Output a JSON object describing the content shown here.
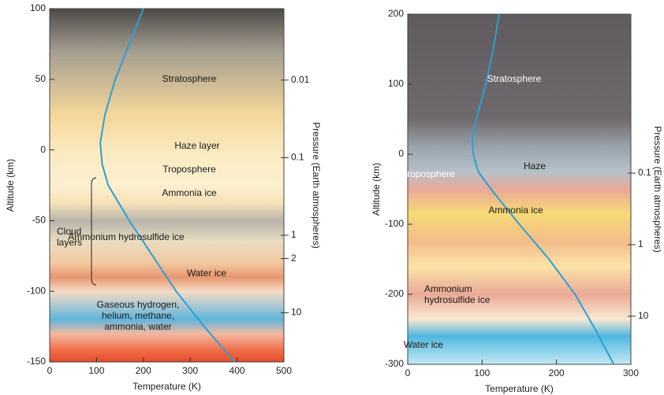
{
  "chart_data": [
    {
      "type": "line",
      "xlabel": "Temperature (K)",
      "ylabel": "Altitude (km)",
      "y2label": "Pressure (Earth atmospheres)",
      "xlim": [
        0,
        500
      ],
      "xticks": [
        0,
        100,
        200,
        300,
        400,
        500
      ],
      "ylim": [
        -150,
        100
      ],
      "yticks": [
        -150,
        -100,
        -50,
        0,
        50,
        100
      ],
      "y2scale": "log",
      "y2lim": [
        43,
        0.0012
      ],
      "y2ticks": [
        0.01,
        0.1,
        1,
        2,
        10
      ],
      "series": [
        {
          "color": "#2a9fd6",
          "x": [
            200,
            170,
            140,
            118,
            108,
            112,
            125,
            170,
            220,
            270,
            330,
            395
          ],
          "values": [
            100,
            75,
            50,
            25,
            5,
            -10,
            -25,
            -50,
            -75,
            -100,
            -125,
            -150
          ]
        }
      ],
      "annotations": [
        "Stratosphere",
        "Haze layer",
        "Troposphere",
        "Ammonia ice",
        "Cloud\nlayers",
        "Ammonium hydrosulfide ice",
        "Water ice",
        "Gaseous hydrogen,\nhelium, methane,\nammonia, water"
      ]
    },
    {
      "type": "line",
      "xlabel": "Temperature (K)",
      "ylabel": "Altitude (km)",
      "y2label": "Pressure (Earth atmospheres)",
      "xlim": [
        0,
        300
      ],
      "xticks": [
        0,
        100,
        200,
        300
      ],
      "ylim": [
        -300,
        200
      ],
      "yticks": [
        -300,
        -200,
        -100,
        0,
        100,
        200
      ],
      "y2scale": "log",
      "y2lim": [
        47,
        0.0006
      ],
      "y2ticks": [
        0.1,
        1,
        10
      ],
      "series": [
        {
          "color": "#2a9fd6",
          "x": [
            123,
            115,
            105,
            92,
            87,
            88,
            95,
            112,
            150,
            190,
            225,
            252,
            277
          ],
          "values": [
            200,
            150,
            100,
            50,
            20,
            0,
            -25,
            -50,
            -100,
            -150,
            -200,
            -250,
            -300
          ]
        }
      ],
      "annotations": [
        "Stratosphere",
        "Haze",
        "Troposphere",
        "Ammonia ice",
        "Ammonium\nhydrosulfide ice",
        "Water ice"
      ]
    }
  ]
}
